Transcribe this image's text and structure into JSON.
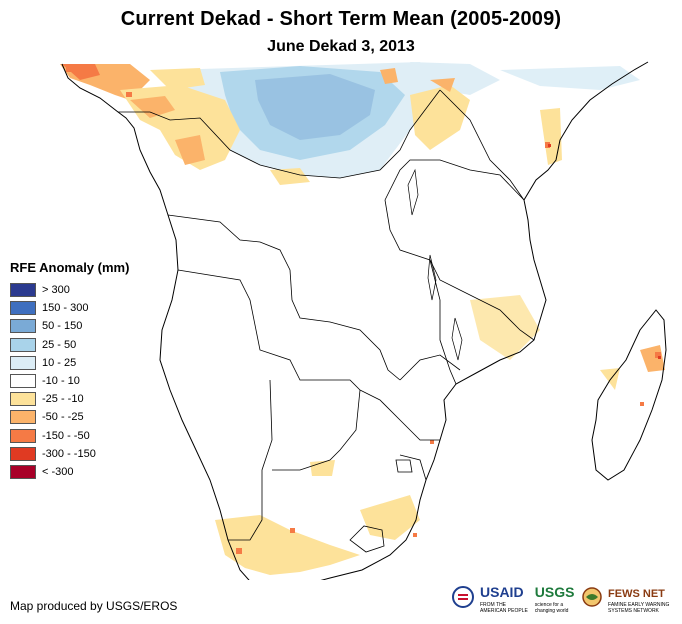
{
  "title": "Current Dekad - Short Term Mean (2005-2009)",
  "subtitle": "June Dekad 3, 2013",
  "legend": {
    "title": "RFE Anomaly (mm)",
    "items": [
      {
        "label": "> 300",
        "color": "#2b3a8f"
      },
      {
        "label": "150 - 300",
        "color": "#3f6fbf"
      },
      {
        "label": "50 - 150",
        "color": "#7aaad6"
      },
      {
        "label": "25 - 50",
        "color": "#a9d3ea"
      },
      {
        "label": "10 - 25",
        "color": "#dcedf6"
      },
      {
        "label": "-10 - 10",
        "color": "#ffffff"
      },
      {
        "label": "-25 - -10",
        "color": "#fde29a"
      },
      {
        "label": "-50 - -25",
        "color": "#fbb36a"
      },
      {
        "label": "-150 - -50",
        "color": "#f57a45"
      },
      {
        "label": "-300 - -150",
        "color": "#e03a22"
      },
      {
        "label": "< -300",
        "color": "#a80028"
      }
    ]
  },
  "credit": "Map produced by USGS/EROS",
  "logos": {
    "usaid": "USAID",
    "usaid_tagline": "FROM THE AMERICAN PEOPLE",
    "usgs": "USGS",
    "usgs_tagline": "science for a changing world",
    "fewsnet": "FEWS NET",
    "fewsnet_tagline": "FAMINE EARLY WARNING SYSTEMS NETWORK"
  }
}
